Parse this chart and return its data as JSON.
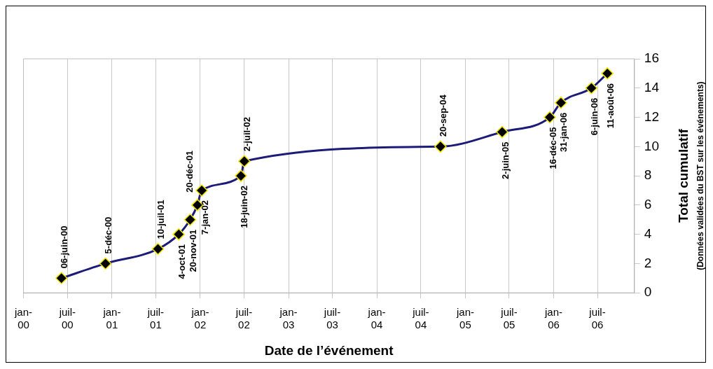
{
  "chart_data": {
    "type": "line",
    "xlabel": "Date de l’événement",
    "ylabel": "Total cumulatif\n(Données validées du BST sur les événements)",
    "x": [
      "2000-06-06",
      "2000-12-05",
      "2001-07-10",
      "2001-10-04",
      "2001-11-20",
      "2001-12-20",
      "2002-01-07",
      "2002-06-18",
      "2002-07-02",
      "2004-09-20",
      "2005-06-02",
      "2005-12-16",
      "2006-01-31",
      "2006-06-06",
      "2006-08-11"
    ],
    "series": [
      {
        "color": "#1c1c78",
        "values": [
          1,
          2,
          3,
          4,
          5,
          6,
          7,
          8,
          9,
          10,
          11,
          12,
          13,
          14,
          15
        ]
      }
    ],
    "xlim": [
      "2000-01",
      "2006-12"
    ],
    "xticks": [
      {
        "value": "2000-01",
        "label": "jan-00"
      },
      {
        "value": "2000-07",
        "label": "juil-00"
      },
      {
        "value": "2001-01",
        "label": "jan-01"
      },
      {
        "value": "2001-07",
        "label": "juil-01"
      },
      {
        "value": "2002-01",
        "label": "jan-02"
      },
      {
        "value": "2002-07",
        "label": "juil-02"
      },
      {
        "value": "2003-01",
        "label": "jan-03"
      },
      {
        "value": "2003-07",
        "label": "juil-03"
      },
      {
        "value": "2004-01",
        "label": "jan-04"
      },
      {
        "value": "2004-07",
        "label": "juil-04"
      },
      {
        "value": "2005-01",
        "label": "jan-05"
      },
      {
        "value": "2005-07",
        "label": "juil-05"
      },
      {
        "value": "2006-01",
        "label": "jan-06"
      },
      {
        "value": "2006-07",
        "label": "juil-06"
      }
    ],
    "ylim": [
      0,
      16
    ],
    "yticks": [
      0,
      2,
      4,
      6,
      8,
      10,
      12,
      14,
      16
    ],
    "grid": "x",
    "legend": false,
    "marker": "diamond",
    "line_style": "solid",
    "annotations": [
      {
        "text": "06-juin-00",
        "x": "2000-06-06",
        "y": 1
      },
      {
        "text": "5-déc-00",
        "x": "2000-12-05",
        "y": 2
      },
      {
        "text": "10-juil-01",
        "x": "2001-07-10",
        "y": 3
      },
      {
        "text": "4-oct-01",
        "x": "2001-10-04",
        "y": 4
      },
      {
        "text": "20-nov-01",
        "x": "2001-11-20",
        "y": 5
      },
      {
        "text": "20-déc-01",
        "x": "2001-12-20",
        "y": 6
      },
      {
        "text": "7-jan-02",
        "x": "2002-01-07",
        "y": 7
      },
      {
        "text": "18-juin-02",
        "x": "2002-06-18",
        "y": 8
      },
      {
        "text": "2-juil-02",
        "x": "2002-07-02",
        "y": 9
      },
      {
        "text": "20-sep-04",
        "x": "2004-09-20",
        "y": 10
      },
      {
        "text": "2-juin-05",
        "x": "2005-06-02",
        "y": 11
      },
      {
        "text": "16-déc-05",
        "x": "2005-12-16",
        "y": 12
      },
      {
        "text": "31-jan-06",
        "x": "2006-01-31",
        "y": 13
      },
      {
        "text": "6-juin-06",
        "x": "2006-06-06",
        "y": 14
      },
      {
        "text": "11-août-06",
        "x": "2006-08-11",
        "y": 15
      }
    ]
  }
}
